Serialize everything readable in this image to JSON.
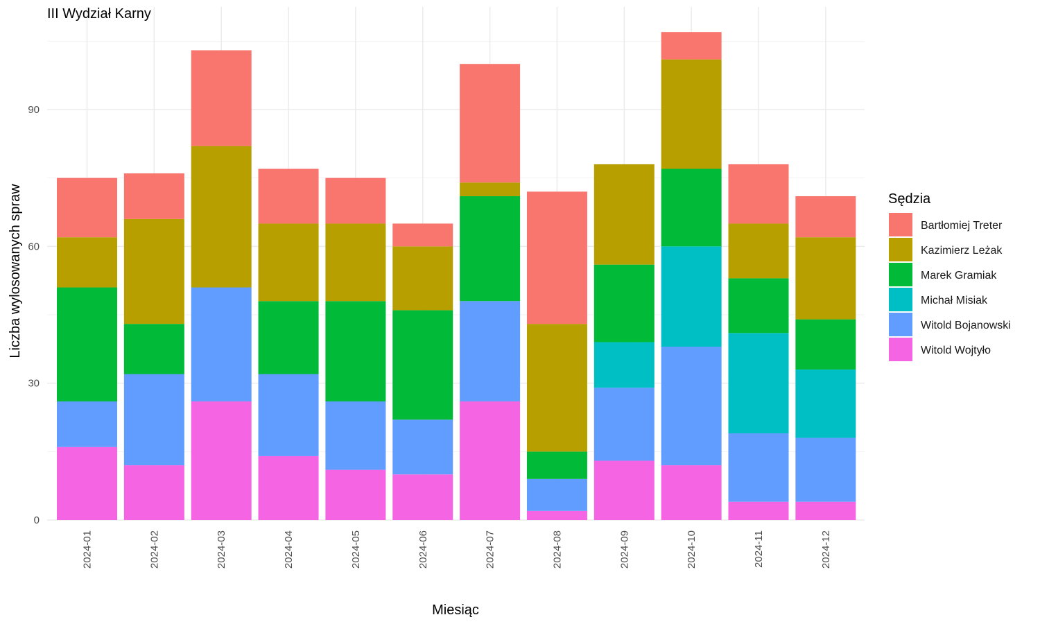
{
  "colors": {
    "Bartłomiej Treter": "#F8766D",
    "Kazimierz Leżak": "#B79F00",
    "Marek Gramiak": "#00BA38",
    "Michał Misiak": "#00BFC4",
    "Witold Bojanowski": "#619CFF",
    "Witold Wojtyło": "#F564E3"
  },
  "chart_data": {
    "type": "bar",
    "stacked": true,
    "title": "III Wydział Karny",
    "xlabel": "Miesiąc",
    "ylabel": "Liczba wylosowanych spraw",
    "ylim": [
      0,
      110
    ],
    "yticks": [
      0,
      30,
      60,
      90
    ],
    "grid": true,
    "legend": {
      "title": "Sędzia",
      "position": "right"
    },
    "categories": [
      "2024-01",
      "2024-02",
      "2024-03",
      "2024-04",
      "2024-05",
      "2024-06",
      "2024-07",
      "2024-08",
      "2024-09",
      "2024-10",
      "2024-11",
      "2024-12"
    ],
    "series": [
      {
        "name": "Witold Wojtyło",
        "values": [
          16,
          12,
          26,
          14,
          11,
          10,
          26,
          2,
          13,
          12,
          4,
          4
        ]
      },
      {
        "name": "Witold Bojanowski",
        "values": [
          10,
          20,
          25,
          18,
          15,
          12,
          22,
          7,
          16,
          26,
          15,
          14
        ]
      },
      {
        "name": "Michał Misiak",
        "values": [
          0,
          0,
          0,
          0,
          0,
          0,
          0,
          0,
          10,
          22,
          22,
          15
        ]
      },
      {
        "name": "Marek Gramiak",
        "values": [
          25,
          11,
          0,
          16,
          22,
          24,
          23,
          6,
          17,
          17,
          12,
          11
        ]
      },
      {
        "name": "Kazimierz Leżak",
        "values": [
          11,
          23,
          31,
          17,
          17,
          14,
          3,
          28,
          22,
          24,
          12,
          18
        ]
      },
      {
        "name": "Bartłomiej Treter",
        "values": [
          13,
          10,
          21,
          12,
          10,
          5,
          26,
          29,
          0,
          6,
          13,
          9
        ]
      }
    ],
    "legend_order": [
      "Bartłomiej Treter",
      "Kazimierz Leżak",
      "Marek Gramiak",
      "Michał Misiak",
      "Witold Bojanowski",
      "Witold Wojtyło"
    ]
  }
}
